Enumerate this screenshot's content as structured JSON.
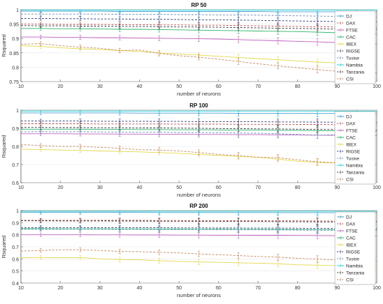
{
  "chart_data": [
    {
      "type": "line",
      "title": "RP 50",
      "xlabel": "number of neurons",
      "ylabel": "Rsquared",
      "xlim": [
        10,
        100
      ],
      "ylim": [
        0.75,
        1.0
      ],
      "xticks": [
        10,
        20,
        30,
        40,
        50,
        60,
        70,
        80,
        90,
        100
      ],
      "yticks": [
        0.75,
        0.8,
        0.85,
        0.9,
        0.95,
        1
      ],
      "ytick_labels": [
        "0.75",
        "0.8",
        "0.85",
        "0.9",
        "0.95",
        "1"
      ],
      "legend_position": "right",
      "x": [
        10,
        15,
        20,
        25,
        30,
        35,
        40,
        45,
        50,
        55,
        60,
        65,
        70,
        75,
        80,
        85,
        90,
        95,
        100
      ],
      "series": [
        {
          "name": "DJ",
          "color": "#3c9fcf",
          "values": [
            0.995,
            0.995,
            0.995,
            0.995,
            0.995,
            0.994,
            0.994,
            0.994,
            0.994,
            0.994,
            0.994,
            0.994,
            0.994,
            0.993,
            0.993,
            0.993,
            0.993,
            0.993,
            0.993
          ]
        },
        {
          "name": "DAX",
          "color": "#c0504d",
          "values": [
            0.95,
            0.95,
            0.949,
            0.949,
            0.949,
            0.948,
            0.948,
            0.947,
            0.947,
            0.946,
            0.946,
            0.945,
            0.944,
            0.943,
            0.942,
            0.941,
            0.94,
            0.939,
            0.938
          ]
        },
        {
          "name": "FTSE",
          "color": "#c060c0",
          "values": [
            0.905,
            0.905,
            0.904,
            0.904,
            0.903,
            0.903,
            0.902,
            0.901,
            0.9,
            0.899,
            0.898,
            0.896,
            0.894,
            0.892,
            0.89,
            0.888,
            0.886,
            0.884,
            0.88
          ]
        },
        {
          "name": "CAC",
          "color": "#2ab56b",
          "values": [
            0.935,
            0.935,
            0.934,
            0.934,
            0.933,
            0.932,
            0.932,
            0.931,
            0.93,
            0.929,
            0.928,
            0.927,
            0.926,
            0.925,
            0.924,
            0.922,
            0.92,
            0.918,
            0.916
          ]
        },
        {
          "name": "IBEX",
          "color": "#e2d84a",
          "values": [
            0.875,
            0.872,
            0.868,
            0.864,
            0.862,
            0.858,
            0.855,
            0.85,
            0.846,
            0.842,
            0.838,
            0.834,
            0.83,
            0.826,
            0.822,
            0.818,
            0.815,
            0.812,
            0.81
          ]
        },
        {
          "name": "RIGSE",
          "color": "#2f3d7a",
          "values": [
            0.97,
            0.97,
            0.969,
            0.969,
            0.968,
            0.968,
            0.967,
            0.967,
            0.966,
            0.965,
            0.965,
            0.964,
            0.963,
            0.962,
            0.961,
            0.96,
            0.959,
            0.958,
            0.957
          ]
        },
        {
          "name": "Tusise",
          "color": "#6a8ebf",
          "values": [
            0.985,
            0.985,
            0.985,
            0.985,
            0.985,
            0.984,
            0.984,
            0.984,
            0.983,
            0.983,
            0.982,
            0.982,
            0.981,
            0.98,
            0.979,
            0.978,
            0.977,
            0.976,
            0.975
          ]
        },
        {
          "name": "Namibia",
          "color": "#1fd3d8",
          "values": [
            0.999,
            0.999,
            0.999,
            0.999,
            0.999,
            0.999,
            0.999,
            0.999,
            0.999,
            0.999,
            0.999,
            0.999,
            0.999,
            0.999,
            0.999,
            0.999,
            0.999,
            0.999,
            0.999
          ]
        },
        {
          "name": "Tanzania",
          "color": "#3a3a3a",
          "values": [
            0.945,
            0.944,
            0.944,
            0.943,
            0.943,
            0.942,
            0.942,
            0.941,
            0.94,
            0.94,
            0.939,
            0.938,
            0.937,
            0.936,
            0.935,
            0.934,
            0.933,
            0.932,
            0.931
          ]
        },
        {
          "name": "CSI",
          "color": "#c8875a",
          "values": [
            0.88,
            0.882,
            0.875,
            0.87,
            0.866,
            0.858,
            0.86,
            0.848,
            0.84,
            0.835,
            0.828,
            0.82,
            0.812,
            0.805,
            0.798,
            0.792,
            0.786,
            0.782,
            0.78
          ]
        }
      ]
    },
    {
      "type": "line",
      "title": "RP 100",
      "xlabel": "number of neurons",
      "ylabel": "Rsquared",
      "xlim": [
        10,
        100
      ],
      "ylim": [
        0.6,
        1.0
      ],
      "xticks": [
        10,
        20,
        30,
        40,
        50,
        60,
        70,
        80,
        90,
        100
      ],
      "yticks": [
        0.6,
        0.7,
        0.8,
        0.9,
        1
      ],
      "ytick_labels": [
        "0.6",
        "0.7",
        "0.8",
        "0.9",
        "1"
      ],
      "legend_position": "right",
      "x": [
        10,
        15,
        20,
        25,
        30,
        35,
        40,
        45,
        50,
        55,
        60,
        65,
        70,
        75,
        80,
        85,
        90,
        95,
        100
      ],
      "series": [
        {
          "name": "DJ",
          "color": "#3c9fcf",
          "values": [
            0.985,
            0.985,
            0.985,
            0.985,
            0.985,
            0.985,
            0.984,
            0.984,
            0.984,
            0.984,
            0.984,
            0.983,
            0.983,
            0.983,
            0.983,
            0.982,
            0.982,
            0.982,
            0.982
          ]
        },
        {
          "name": "DAX",
          "color": "#c0504d",
          "values": [
            0.925,
            0.925,
            0.925,
            0.925,
            0.924,
            0.924,
            0.924,
            0.924,
            0.923,
            0.923,
            0.923,
            0.922,
            0.922,
            0.922,
            0.921,
            0.921,
            0.92,
            0.92,
            0.92
          ]
        },
        {
          "name": "FTSE",
          "color": "#c060c0",
          "values": [
            0.87,
            0.87,
            0.87,
            0.869,
            0.869,
            0.868,
            0.868,
            0.867,
            0.867,
            0.866,
            0.866,
            0.865,
            0.865,
            0.864,
            0.863,
            0.862,
            0.861,
            0.86,
            0.86
          ]
        },
        {
          "name": "CAC",
          "color": "#2ab56b",
          "values": [
            0.895,
            0.895,
            0.895,
            0.895,
            0.894,
            0.894,
            0.893,
            0.893,
            0.892,
            0.892,
            0.891,
            0.89,
            0.89,
            0.889,
            0.888,
            0.887,
            0.886,
            0.885,
            0.885
          ]
        },
        {
          "name": "IBEX",
          "color": "#e2d84a",
          "values": [
            0.785,
            0.783,
            0.78,
            0.778,
            0.775,
            0.772,
            0.77,
            0.766,
            0.762,
            0.756,
            0.75,
            0.745,
            0.74,
            0.73,
            0.718,
            0.712,
            0.708,
            0.704,
            0.7
          ]
        },
        {
          "name": "RIGSE",
          "color": "#2f3d7a",
          "values": [
            0.94,
            0.94,
            0.94,
            0.94,
            0.939,
            0.939,
            0.939,
            0.938,
            0.938,
            0.937,
            0.937,
            0.936,
            0.936,
            0.935,
            0.935,
            0.934,
            0.934,
            0.933,
            0.933
          ]
        },
        {
          "name": "Tusise",
          "color": "#6a8ebf",
          "values": [
            0.88,
            0.882,
            0.88,
            0.881,
            0.88,
            0.879,
            0.878,
            0.879,
            0.877,
            0.876,
            0.875,
            0.874,
            0.873,
            0.87,
            0.866,
            0.862,
            0.865,
            0.862,
            0.86
          ]
        },
        {
          "name": "Namibia",
          "color": "#1fd3d8",
          "values": [
            0.995,
            0.995,
            0.995,
            0.995,
            0.995,
            0.995,
            0.995,
            0.995,
            0.995,
            0.995,
            0.995,
            0.995,
            0.995,
            0.995,
            0.995,
            0.995,
            0.995,
            0.995,
            0.995
          ]
        },
        {
          "name": "Tanzania",
          "color": "#3a3a3a",
          "values": [
            0.905,
            0.905,
            0.904,
            0.904,
            0.903,
            0.903,
            0.902,
            0.902,
            0.901,
            0.9,
            0.899,
            0.898,
            0.897,
            0.896,
            0.895,
            0.894,
            0.893,
            0.892,
            0.891
          ]
        },
        {
          "name": "CSI",
          "color": "#c8875a",
          "values": [
            0.81,
            0.805,
            0.8,
            0.8,
            0.795,
            0.79,
            0.782,
            0.78,
            0.775,
            0.766,
            0.756,
            0.75,
            0.74,
            0.738,
            0.726,
            0.715,
            0.71,
            0.706,
            0.7
          ]
        }
      ]
    },
    {
      "type": "line",
      "title": "RP 200",
      "xlabel": "number of neurons",
      "ylabel": "Rsquared",
      "xlim": [
        10,
        100
      ],
      "ylim": [
        0.4,
        1.0
      ],
      "xticks": [
        10,
        20,
        30,
        40,
        50,
        60,
        70,
        80,
        90,
        100
      ],
      "yticks": [
        0.4,
        0.5,
        0.6,
        0.7,
        0.8,
        0.9,
        1
      ],
      "ytick_labels": [
        "0.4",
        "0.5",
        "0.6",
        "0.7",
        "0.8",
        "0.9",
        "1"
      ],
      "legend_position": "right",
      "x": [
        10,
        15,
        20,
        25,
        30,
        35,
        40,
        45,
        50,
        55,
        60,
        65,
        70,
        75,
        80,
        85,
        90,
        95,
        100
      ],
      "series": [
        {
          "name": "DJ",
          "color": "#3c9fcf",
          "values": [
            0.985,
            0.985,
            0.985,
            0.985,
            0.985,
            0.985,
            0.985,
            0.984,
            0.984,
            0.984,
            0.984,
            0.984,
            0.984,
            0.983,
            0.983,
            0.983,
            0.983,
            0.983,
            0.983
          ]
        },
        {
          "name": "DAX",
          "color": "#c0504d",
          "values": [
            0.92,
            0.92,
            0.92,
            0.92,
            0.919,
            0.919,
            0.919,
            0.918,
            0.918,
            0.917,
            0.917,
            0.916,
            0.916,
            0.915,
            0.915,
            0.914,
            0.913,
            0.912,
            0.912
          ]
        },
        {
          "name": "FTSE",
          "color": "#c060c0",
          "values": [
            0.8,
            0.8,
            0.8,
            0.8,
            0.799,
            0.799,
            0.798,
            0.798,
            0.797,
            0.797,
            0.796,
            0.796,
            0.795,
            0.795,
            0.794,
            0.793,
            0.792,
            0.791,
            0.79
          ]
        },
        {
          "name": "CAC",
          "color": "#2ab56b",
          "values": [
            0.85,
            0.85,
            0.849,
            0.849,
            0.849,
            0.848,
            0.848,
            0.847,
            0.847,
            0.846,
            0.846,
            0.845,
            0.845,
            0.844,
            0.843,
            0.842,
            0.841,
            0.84,
            0.84
          ]
        },
        {
          "name": "IBEX",
          "color": "#e2d84a",
          "values": [
            0.61,
            0.612,
            0.61,
            0.612,
            0.6,
            0.595,
            0.592,
            0.585,
            0.58,
            0.575,
            0.572,
            0.568,
            0.565,
            0.56,
            0.552,
            0.548,
            0.545,
            0.54,
            0.54
          ]
        },
        {
          "name": "RIGSE",
          "color": "#2f3d7a",
          "values": [
            0.86,
            0.86,
            0.86,
            0.86,
            0.859,
            0.859,
            0.858,
            0.858,
            0.857,
            0.857,
            0.856,
            0.856,
            0.855,
            0.855,
            0.854,
            0.853,
            0.852,
            0.851,
            0.85
          ]
        },
        {
          "name": "Tusise",
          "color": "#6a8ebf",
          "values": [
            0.845,
            0.846,
            0.845,
            0.846,
            0.845,
            0.845,
            0.844,
            0.844,
            0.843,
            0.843,
            0.842,
            0.842,
            0.841,
            0.84,
            0.839,
            0.838,
            0.837,
            0.836,
            0.835
          ]
        },
        {
          "name": "Namibia",
          "color": "#1fd3d8",
          "values": [
            0.995,
            0.995,
            0.995,
            0.995,
            0.995,
            0.995,
            0.995,
            0.995,
            0.995,
            0.995,
            0.995,
            0.995,
            0.995,
            0.995,
            0.995,
            0.995,
            0.995,
            0.995,
            0.995
          ]
        },
        {
          "name": "Tanzania",
          "color": "#3a3a3a",
          "values": [
            0.915,
            0.915,
            0.914,
            0.914,
            0.914,
            0.913,
            0.913,
            0.912,
            0.912,
            0.911,
            0.911,
            0.91,
            0.91,
            0.909,
            0.908,
            0.907,
            0.906,
            0.905,
            0.905
          ]
        },
        {
          "name": "CSI",
          "color": "#c8875a",
          "values": [
            0.665,
            0.67,
            0.675,
            0.676,
            0.67,
            0.662,
            0.66,
            0.655,
            0.65,
            0.642,
            0.635,
            0.628,
            0.62,
            0.615,
            0.605,
            0.598,
            0.592,
            0.588,
            0.585
          ]
        }
      ]
    }
  ]
}
